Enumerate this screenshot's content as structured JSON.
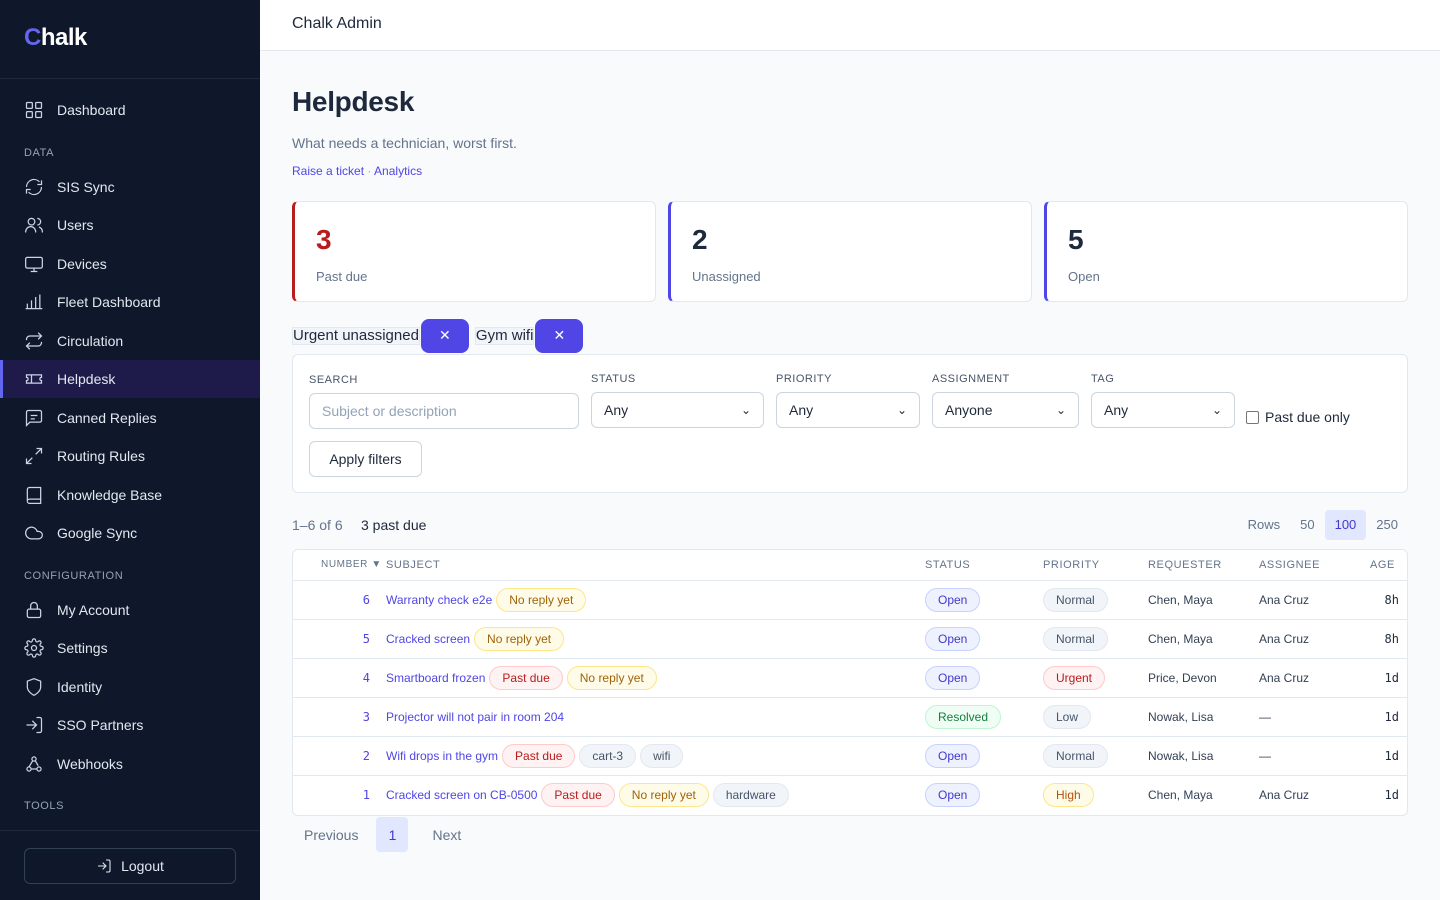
{
  "brand": {
    "first": "C",
    "rest": "halk"
  },
  "sidebar": {
    "top": [
      {
        "label": "Dashboard",
        "icon": "dashboard-icon"
      }
    ],
    "data_label": "DATA",
    "data_items": [
      {
        "label": "SIS Sync",
        "icon": "sync-icon"
      },
      {
        "label": "Users",
        "icon": "users-icon"
      },
      {
        "label": "Devices",
        "icon": "monitor-icon"
      },
      {
        "label": "Fleet Dashboard",
        "icon": "bar-chart-icon"
      },
      {
        "label": "Circulation",
        "icon": "repeat-icon"
      },
      {
        "label": "Helpdesk",
        "icon": "ticket-icon",
        "active": true
      },
      {
        "label": "Canned Replies",
        "icon": "message-icon"
      },
      {
        "label": "Routing Rules",
        "icon": "arrows-icon"
      },
      {
        "label": "Knowledge Base",
        "icon": "book-icon"
      },
      {
        "label": "Google Sync",
        "icon": "cloud-icon"
      }
    ],
    "config_label": "CONFIGURATION",
    "config_items": [
      {
        "label": "My Account",
        "icon": "lock-icon"
      },
      {
        "label": "Settings",
        "icon": "gear-icon"
      },
      {
        "label": "Identity",
        "icon": "shield-icon"
      },
      {
        "label": "SSO Partners",
        "icon": "login-icon"
      },
      {
        "label": "Webhooks",
        "icon": "webhook-icon"
      }
    ],
    "tools_label": "TOOLS",
    "logout": "Logout"
  },
  "topbar": {
    "title": "Chalk Admin"
  },
  "page": {
    "title": "Helpdesk",
    "subtitle": "What needs a technician, worst first.",
    "link_raise": "Raise a ticket",
    "link_sep": " · ",
    "link_analytics": "Analytics"
  },
  "stats": [
    {
      "value": "3",
      "label": "Past due"
    },
    {
      "value": "2",
      "label": "Unassigned"
    },
    {
      "value": "5",
      "label": "Open"
    }
  ],
  "chips": [
    {
      "label": "Urgent unassigned",
      "x": "✕"
    },
    {
      "label": "Gym wifi",
      "x": "✕"
    }
  ],
  "filters": {
    "search_label": "SEARCH",
    "search_placeholder": "Subject or description",
    "status_label": "STATUS",
    "status_value": "Any",
    "priority_label": "PRIORITY",
    "priority_value": "Any",
    "assignment_label": "ASSIGNMENT",
    "assignment_value": "Anyone",
    "tag_label": "TAG",
    "tag_value": "Any",
    "past_due_only": "Past due only",
    "apply": "Apply filters"
  },
  "toolbar": {
    "range": "1–6 of 6",
    "past_due": "3 past due",
    "rows_label": "Rows",
    "rows_options": [
      "50",
      "100",
      "250"
    ],
    "rows_selected": "100"
  },
  "table": {
    "headers": {
      "number": "NUMBER ▼",
      "subject": "SUBJECT",
      "status": "STATUS",
      "priority": "PRIORITY",
      "requester": "REQUESTER",
      "assignee": "ASSIGNEE",
      "age": "AGE"
    },
    "rows": [
      {
        "number": "6",
        "subject": "Warranty check e2e",
        "tags": [
          {
            "text": "No reply yet",
            "kind": "noreply"
          }
        ],
        "status": "Open",
        "status_kind": "open",
        "priority": "Normal",
        "priority_kind": "normal",
        "requester": "Chen, Maya",
        "assignee": "Ana Cruz",
        "age": "8h"
      },
      {
        "number": "5",
        "subject": "Cracked screen",
        "tags": [
          {
            "text": "No reply yet",
            "kind": "noreply"
          }
        ],
        "status": "Open",
        "status_kind": "open",
        "priority": "Normal",
        "priority_kind": "normal",
        "requester": "Chen, Maya",
        "assignee": "Ana Cruz",
        "age": "8h"
      },
      {
        "number": "4",
        "subject": "Smartboard frozen",
        "tags": [
          {
            "text": "Past due",
            "kind": "pastdue"
          },
          {
            "text": "No reply yet",
            "kind": "noreply"
          }
        ],
        "status": "Open",
        "status_kind": "open",
        "priority": "Urgent",
        "priority_kind": "urgent",
        "requester": "Price, Devon",
        "assignee": "Ana Cruz",
        "age": "1d"
      },
      {
        "number": "3",
        "subject": "Projector will not pair in room 204",
        "tags": [],
        "status": "Resolved",
        "status_kind": "resolved",
        "priority": "Low",
        "priority_kind": "low",
        "requester": "Nowak, Lisa",
        "assignee": "—",
        "age": "1d"
      },
      {
        "number": "2",
        "subject": "Wifi drops in the gym",
        "tags": [
          {
            "text": "Past due",
            "kind": "pastdue"
          },
          {
            "text": "cart-3",
            "kind": "plain"
          },
          {
            "text": "wifi",
            "kind": "plain"
          }
        ],
        "status": "Open",
        "status_kind": "open",
        "priority": "Normal",
        "priority_kind": "normal",
        "requester": "Nowak, Lisa",
        "assignee": "—",
        "age": "1d"
      },
      {
        "number": "1",
        "subject": "Cracked screen on CB-0500",
        "tags": [
          {
            "text": "Past due",
            "kind": "pastdue"
          },
          {
            "text": "No reply yet",
            "kind": "noreply"
          },
          {
            "text": "hardware",
            "kind": "plain"
          }
        ],
        "status": "Open",
        "status_kind": "open",
        "priority": "High",
        "priority_kind": "high",
        "requester": "Chen, Maya",
        "assignee": "Ana Cruz",
        "age": "1d"
      }
    ]
  },
  "pager": {
    "prev": "Previous",
    "page": "1",
    "next": "Next"
  },
  "colors": {
    "accent": "#4f46e5",
    "sidebar_bg": "#0f172a",
    "danger": "#b91c1c"
  }
}
